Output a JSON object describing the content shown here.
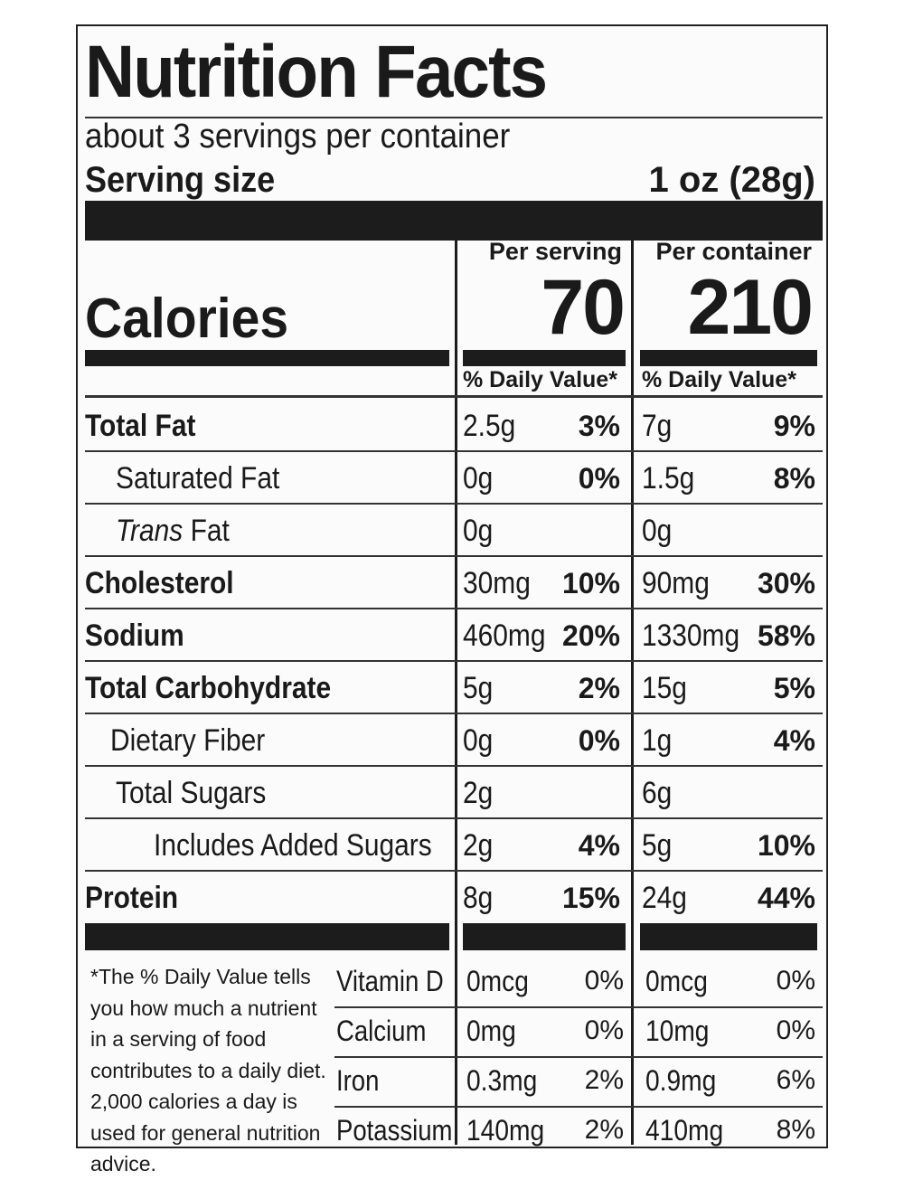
{
  "label": {
    "title": "Nutrition Facts",
    "servings_per_container": "about 3 servings per container",
    "serving_size_label": "Serving size",
    "serving_size_value": "1 oz (28g)",
    "calories_label": "Calories",
    "columns": [
      {
        "header": "Per serving",
        "calories": "70",
        "dv_header": "% Daily Value*"
      },
      {
        "header": "Per container",
        "calories": "210",
        "dv_header": "% Daily Value*"
      }
    ],
    "nutrients": [
      {
        "name": "Total Fat",
        "serving_amount": "2.5g",
        "serving_dv": "3%",
        "container_amount": "7g",
        "container_dv": "9%"
      },
      {
        "name": "Saturated Fat",
        "serving_amount": "0g",
        "serving_dv": "0%",
        "container_amount": "1.5g",
        "container_dv": "8%"
      },
      {
        "name_italic": "Trans",
        "name": " Fat",
        "serving_amount": "0g",
        "serving_dv": "",
        "container_amount": "0g",
        "container_dv": ""
      },
      {
        "name": "Cholesterol",
        "serving_amount": "30mg",
        "serving_dv": "10%",
        "container_amount": "90mg",
        "container_dv": "30%"
      },
      {
        "name": "Sodium",
        "serving_amount": "460mg",
        "serving_dv": "20%",
        "container_amount": "1330mg",
        "container_dv": "58%"
      },
      {
        "name": "Total Carbohydrate",
        "serving_amount": "5g",
        "serving_dv": "2%",
        "container_amount": "15g",
        "container_dv": "5%"
      },
      {
        "name": "Dietary Fiber",
        "serving_amount": "0g",
        "serving_dv": "0%",
        "container_amount": "1g",
        "container_dv": "4%"
      },
      {
        "name": "Total Sugars",
        "serving_amount": "2g",
        "serving_dv": "",
        "container_amount": "6g",
        "container_dv": ""
      },
      {
        "name": "Includes Added Sugars",
        "serving_amount": "2g",
        "serving_dv": "4%",
        "container_amount": "5g",
        "container_dv": "10%"
      },
      {
        "name": "Protein",
        "serving_amount": "8g",
        "serving_dv": "15%",
        "container_amount": "24g",
        "container_dv": "44%"
      }
    ],
    "vitamins": [
      {
        "name": "Vitamin D",
        "serving_amount": "0mcg",
        "serving_dv": "0%",
        "container_amount": "0mcg",
        "container_dv": "0%"
      },
      {
        "name": "Calcium",
        "serving_amount": "0mg",
        "serving_dv": "0%",
        "container_amount": "10mg",
        "container_dv": "0%"
      },
      {
        "name": "Iron",
        "serving_amount": "0.3mg",
        "serving_dv": "2%",
        "container_amount": "0.9mg",
        "container_dv": "6%"
      },
      {
        "name": "Potassium",
        "serving_amount": "140mg",
        "serving_dv": "2%",
        "container_amount": "410mg",
        "container_dv": "8%"
      }
    ],
    "footnote": "*The % Daily Value tells you how much a nutrient in a serving of food contributes to a daily diet. 2,000 calories a day is used for general nutrition advice."
  }
}
